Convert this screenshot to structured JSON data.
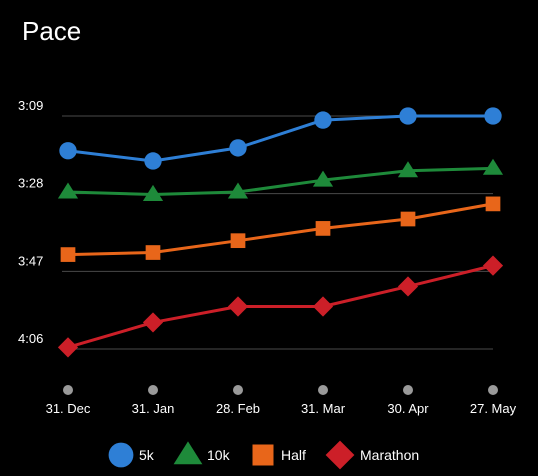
{
  "app": {
    "title": "Pace"
  },
  "chart_data": {
    "type": "line",
    "title": "Pace",
    "xlabel": "",
    "ylabel": "",
    "y_axis": {
      "inverted": true,
      "range_seconds": [
        180,
        246
      ],
      "ticks": [
        {
          "label": "3:09",
          "seconds": 189
        },
        {
          "label": "3:28",
          "seconds": 208
        },
        {
          "label": "3:47",
          "seconds": 227
        },
        {
          "label": "4:06",
          "seconds": 246
        }
      ]
    },
    "categories": [
      "31. Dec",
      "31. Jan",
      "28. Feb",
      "31. Mar",
      "30. Apr",
      "27. May"
    ],
    "grid": true,
    "legend_position": "bottom",
    "series": [
      {
        "name": "5k",
        "color": "#2e7fd6",
        "marker": "circle",
        "values_seconds": [
          197.5,
          200.0,
          196.8,
          190.0,
          189.0,
          189.0
        ],
        "values": [
          "3:17",
          "3:20",
          "3:17",
          "3:10",
          "3:09",
          "3:09"
        ]
      },
      {
        "name": "10k",
        "color": "#1e8a3a",
        "marker": "triangle",
        "values_seconds": [
          207.6,
          208.2,
          207.6,
          204.7,
          202.4,
          201.8
        ],
        "values": [
          "3:28",
          "3:28",
          "3:28",
          "3:25",
          "3:22",
          "3:22"
        ]
      },
      {
        "name": "Half",
        "color": "#e8661a",
        "marker": "square",
        "values_seconds": [
          222.9,
          222.4,
          219.5,
          216.5,
          214.2,
          210.5
        ],
        "values": [
          "3:43",
          "3:42",
          "3:40",
          "3:37",
          "3:34",
          "3:31"
        ]
      },
      {
        "name": "Marathon",
        "color": "#cc1f28",
        "marker": "diamond",
        "values_seconds": [
          245.6,
          239.5,
          235.6,
          235.6,
          230.7,
          225.6
        ],
        "values": [
          "4:06",
          "4:00",
          "3:56",
          "3:56",
          "3:51",
          "3:46"
        ]
      }
    ]
  }
}
